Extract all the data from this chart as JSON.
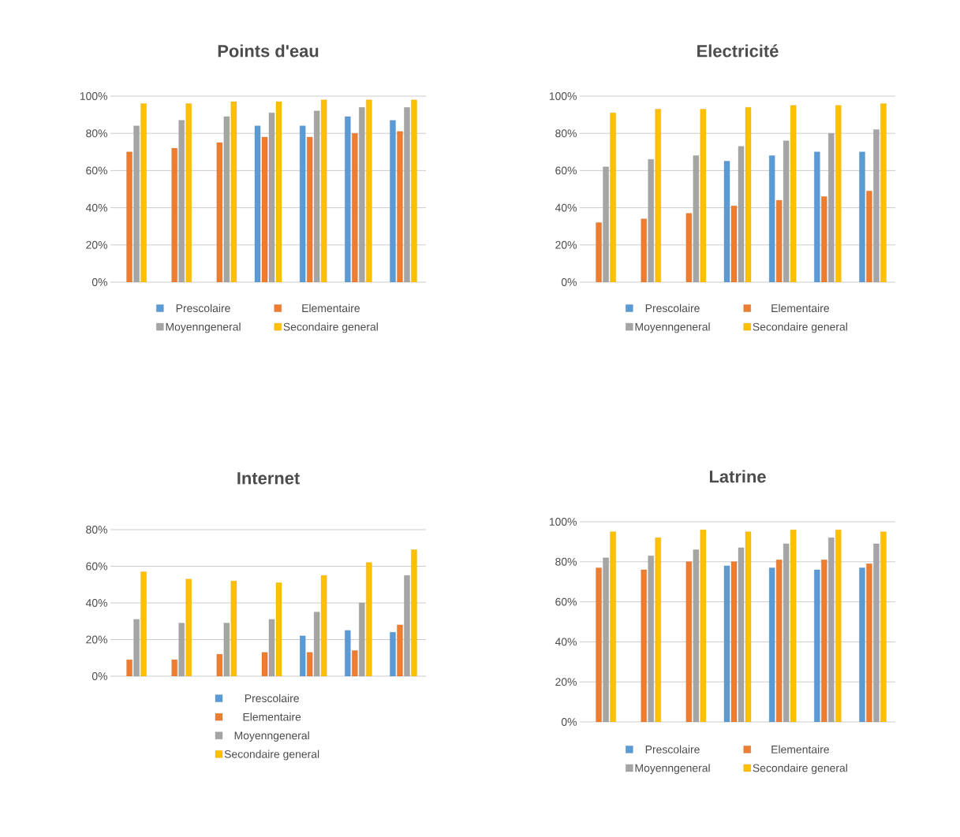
{
  "chart_data": [
    {
      "type": "bar",
      "title": "Points d'eau",
      "categories": [
        null,
        null,
        null,
        null,
        null,
        null,
        null
      ],
      "ylim": [
        0,
        100
      ],
      "yticks": [
        {
          "value": 0,
          "label": "0%"
        },
        {
          "value": 20,
          "label": "20%"
        },
        {
          "value": 40,
          "label": "40%"
        },
        {
          "value": 60,
          "label": "60%"
        },
        {
          "value": 80,
          "label": "80%"
        },
        {
          "value": 100,
          "label": "100%"
        }
      ],
      "grid": "y",
      "legend": "bottom",
      "tick_labels": "y",
      "series": [
        {
          "name": "Prescolaire",
          "color": "#5b9bd5",
          "values": [
            null,
            null,
            null,
            84,
            84,
            89,
            87
          ]
        },
        {
          "name": "Elementaire",
          "color": "#ed7d31",
          "values": [
            70,
            72,
            75,
            78,
            78,
            80,
            81
          ]
        },
        {
          "name": "Moyenngeneral",
          "color": "#a5a5a5",
          "values": [
            84,
            87,
            89,
            91,
            92,
            94,
            94
          ]
        },
        {
          "name": "Secondaire general",
          "color": "#ffc000",
          "values": [
            96,
            96,
            97,
            97,
            98,
            98,
            98
          ]
        }
      ]
    },
    {
      "type": "bar",
      "title": "Electricité",
      "categories": [
        null,
        null,
        null,
        null,
        null,
        null,
        null
      ],
      "ylim": [
        0,
        100
      ],
      "yticks": [
        {
          "value": 0,
          "label": "0%"
        },
        {
          "value": 20,
          "label": "20%"
        },
        {
          "value": 40,
          "label": "40%"
        },
        {
          "value": 60,
          "label": "60%"
        },
        {
          "value": 80,
          "label": "80%"
        },
        {
          "value": 100,
          "label": "100%"
        }
      ],
      "grid": "y",
      "legend": "bottom",
      "tick_labels": "y",
      "series": [
        {
          "name": "Prescolaire",
          "color": "#5b9bd5",
          "values": [
            null,
            null,
            null,
            65,
            68,
            70,
            70
          ]
        },
        {
          "name": "Elementaire",
          "color": "#ed7d31",
          "values": [
            32,
            34,
            37,
            41,
            44,
            46,
            49
          ]
        },
        {
          "name": "Moyenngeneral",
          "color": "#a5a5a5",
          "values": [
            62,
            66,
            68,
            73,
            76,
            80,
            82
          ]
        },
        {
          "name": "Secondaire general",
          "color": "#ffc000",
          "values": [
            91,
            93,
            93,
            94,
            95,
            95,
            96
          ]
        }
      ]
    },
    {
      "type": "bar",
      "title": "Internet",
      "categories": [
        null,
        null,
        null,
        null,
        null,
        null,
        null
      ],
      "ylim": [
        0,
        80
      ],
      "yticks": [
        {
          "value": 0,
          "label": "0%"
        },
        {
          "value": 20,
          "label": "20%"
        },
        {
          "value": 40,
          "label": "40%"
        },
        {
          "value": 60,
          "label": "60%"
        },
        {
          "value": 80,
          "label": "80%"
        }
      ],
      "grid": "y",
      "legend": "bottom",
      "tick_labels": "y",
      "series": [
        {
          "name": "Prescolaire",
          "color": "#5b9bd5",
          "values": [
            null,
            null,
            null,
            null,
            22,
            25,
            24
          ]
        },
        {
          "name": "Elementaire",
          "color": "#ed7d31",
          "values": [
            9,
            9,
            12,
            13,
            13,
            14,
            28
          ]
        },
        {
          "name": "Moyenngeneral",
          "color": "#a5a5a5",
          "values": [
            31,
            29,
            29,
            31,
            35,
            40,
            55
          ]
        },
        {
          "name": "Secondaire general",
          "color": "#ffc000",
          "values": [
            57,
            53,
            52,
            51,
            55,
            62,
            69
          ]
        }
      ]
    },
    {
      "type": "bar",
      "title": "Latrine",
      "categories": [
        null,
        null,
        null,
        null,
        null,
        null,
        null
      ],
      "ylim": [
        0,
        100
      ],
      "yticks": [
        {
          "value": 0,
          "label": "0%"
        },
        {
          "value": 20,
          "label": "20%"
        },
        {
          "value": 40,
          "label": "40%"
        },
        {
          "value": 60,
          "label": "60%"
        },
        {
          "value": 80,
          "label": "80%"
        },
        {
          "value": 100,
          "label": "100%"
        }
      ],
      "grid": "y",
      "legend": "bottom",
      "tick_labels": "y",
      "series": [
        {
          "name": "Prescolaire",
          "color": "#5b9bd5",
          "values": [
            null,
            null,
            null,
            78,
            77,
            76,
            77
          ]
        },
        {
          "name": "Elementaire",
          "color": "#ed7d31",
          "values": [
            77,
            76,
            80,
            80,
            81,
            81,
            79
          ]
        },
        {
          "name": "Moyenngeneral",
          "color": "#a5a5a5",
          "values": [
            82,
            83,
            86,
            87,
            89,
            92,
            89
          ]
        },
        {
          "name": "Secondaire general",
          "color": "#ffc000",
          "values": [
            95,
            92,
            96,
            95,
            96,
            96,
            95
          ]
        }
      ]
    }
  ]
}
